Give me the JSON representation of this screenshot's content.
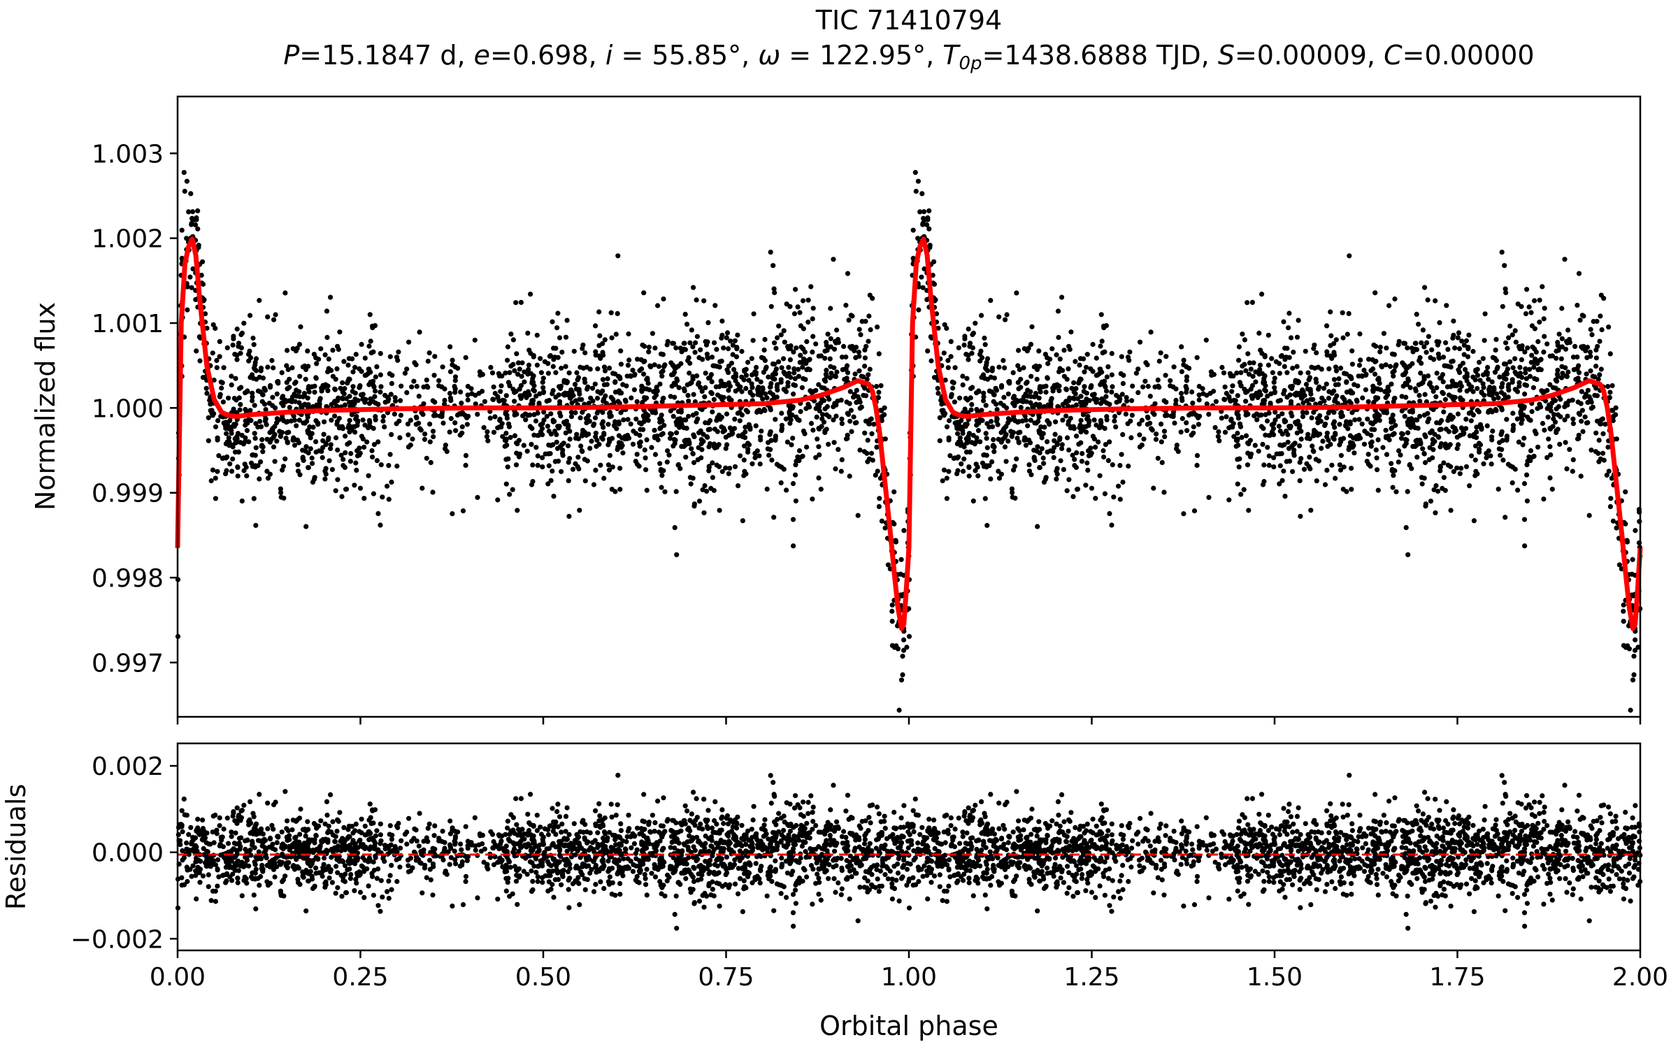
{
  "chart_data": [
    {
      "panel": "light-curve",
      "type": "scatter",
      "title": "TIC 71410794",
      "subtitle": {
        "runs": [
          {
            "t": "P",
            "i": true
          },
          {
            "t": "=15.1847 d, ",
            "i": false
          },
          {
            "t": "e",
            "i": true
          },
          {
            "t": "=0.698, ",
            "i": false
          },
          {
            "t": "i",
            "i": true
          },
          {
            "t": " = 55.85°, ",
            "i": false
          },
          {
            "t": "ω",
            "i": true
          },
          {
            "t": " = 122.95°, ",
            "i": false
          },
          {
            "t": "T",
            "i": true
          },
          {
            "t": "0p",
            "i": true,
            "sub": true
          },
          {
            "t": "=1438.6888 TJD, ",
            "i": false
          },
          {
            "t": "S",
            "i": true
          },
          {
            "t": "=0.00009, ",
            "i": false
          },
          {
            "t": "C",
            "i": true
          },
          {
            "t": "=0.00000",
            "i": false
          }
        ]
      },
      "xlabel": "",
      "ylabel": "Normalized flux",
      "xlim": [
        0.0,
        2.0
      ],
      "ylim": [
        0.99636,
        1.00367
      ],
      "xticks": [
        0.0,
        0.25,
        0.5,
        0.75,
        1.0,
        1.25,
        1.5,
        1.75,
        2.0
      ],
      "yticks": [
        "0.997",
        "0.998",
        "0.999",
        "1.000",
        "1.001",
        "1.002",
        "1.003"
      ],
      "grid": false,
      "series": [
        {
          "kind": "observed points (phase-folded, shown twice over phase 0–2)",
          "color": "#000000",
          "points_per_cycle": 2600,
          "scatter_sigma": 0.00046,
          "noise_clusters": [
            {
              "phase_from": 0.04,
              "phase_to": 0.14,
              "sigma": 0.0005
            },
            {
              "phase_from": 0.3,
              "phase_to": 0.45,
              "sigma": 0.00035
            },
            {
              "phase_from": 0.8,
              "phase_to": 0.96,
              "sigma": 0.00055
            }
          ],
          "sparse_phases": [
            {
              "phase_from": 0.28,
              "phase_to": 0.44,
              "density": 0.45
            },
            {
              "phase_from": 0.4,
              "phase_to": 0.43,
              "density": 0.25
            }
          ]
        },
        {
          "kind": "model fit",
          "color": "#ff0000",
          "x": [
            0.0,
            0.005,
            0.01,
            0.015,
            0.02,
            0.025,
            0.03,
            0.04,
            0.05,
            0.06,
            0.07,
            0.08,
            0.1,
            0.15,
            0.2,
            0.3,
            0.4,
            0.5,
            0.6,
            0.7,
            0.8,
            0.85,
            0.88,
            0.91,
            0.93,
            0.945,
            0.95,
            0.955,
            0.96,
            0.965,
            0.97,
            0.975,
            0.98,
            0.985,
            0.99,
            0.993,
            0.996,
            1.0
          ],
          "y": [
            0.99835,
            1.001,
            1.0017,
            1.0019,
            1.00199,
            1.0018,
            1.0013,
            1.0005,
            1.0001,
            0.99995,
            0.99991,
            0.9999,
            0.99992,
            0.99995,
            0.99997,
            0.99999,
            1.0,
            1.0,
            1.00001,
            1.00003,
            1.00005,
            1.00009,
            1.00015,
            1.00024,
            1.00032,
            1.00028,
            1.0002,
            1.0,
            0.9997,
            0.9993,
            0.9989,
            0.9985,
            0.99805,
            0.99765,
            0.9974,
            0.99745,
            0.9978,
            0.99835
          ]
        }
      ]
    },
    {
      "panel": "residuals",
      "type": "scatter",
      "xlabel": "Orbital phase",
      "ylabel": "Residuals",
      "xlim": [
        0.0,
        2.0
      ],
      "ylim": [
        -0.00227,
        0.00252
      ],
      "xticks": [
        "0.00",
        "0.25",
        "0.50",
        "0.75",
        "1.00",
        "1.25",
        "1.50",
        "1.75",
        "2.00"
      ],
      "yticks": [
        "−0.002",
        "0.000",
        "0.002"
      ],
      "grid": false,
      "series": [
        {
          "kind": "residual points",
          "color": "#000000",
          "scatter_sigma": 0.00046
        },
        {
          "kind": "zero reference",
          "style": "dashed",
          "color": "#ff0000",
          "y": 0.0
        }
      ]
    }
  ]
}
